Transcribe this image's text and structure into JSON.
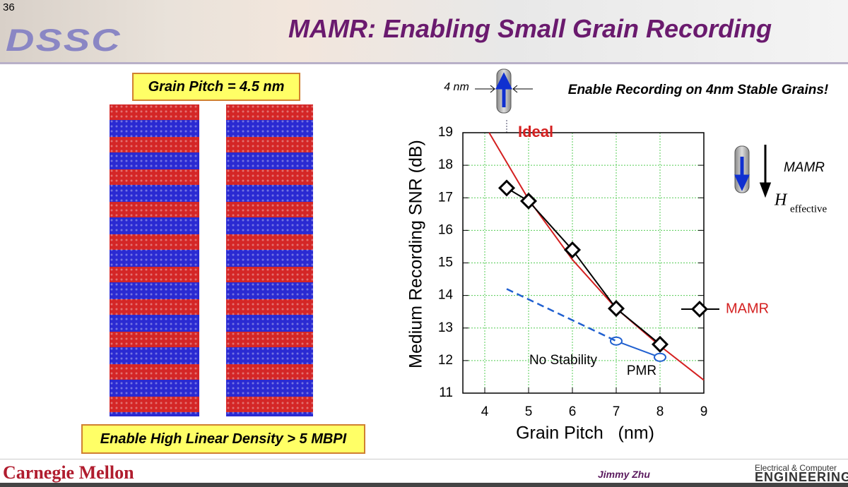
{
  "slide": {
    "number": "36",
    "logo": "DSSC",
    "title": "MAMR: Enabling Small Grain Recording",
    "box_top": "Grain Pitch = 4.5 nm",
    "box_bottom": "Enable High Linear Density > 5 MBPI",
    "footer_left": "Carnegie Mellon",
    "footer_author": "Jimmy Zhu",
    "footer_right_1": "Electrical & Computer",
    "footer_right_2": "ENGINEERING"
  },
  "chart_data": {
    "type": "line",
    "x_label": "Grain Pitch   (nm)",
    "y_label": "Medium Recording SNR (dB)",
    "xlim": [
      3.5,
      9
    ],
    "ylim": [
      11,
      19
    ],
    "xticks": [
      4,
      5,
      6,
      7,
      8,
      9
    ],
    "yticks": [
      11,
      12,
      13,
      14,
      15,
      16,
      17,
      18,
      19
    ],
    "grid": true,
    "series": [
      {
        "name": "Ideal",
        "color": "#d42020",
        "x": [
          4.1,
          5,
          6,
          7,
          8,
          9
        ],
        "values": [
          19,
          16.95,
          15.1,
          13.6,
          12.45,
          11.4
        ]
      },
      {
        "name": "MAMR",
        "color": "#000000",
        "marker": "diamond",
        "x": [
          4.5,
          5,
          6,
          7,
          8
        ],
        "values": [
          17.3,
          16.9,
          15.4,
          13.6,
          12.5
        ]
      },
      {
        "name": "PMR",
        "color": "#2060d0",
        "marker": "ellipse",
        "x": [
          7,
          8
        ],
        "values": [
          12.6,
          12.1
        ]
      },
      {
        "color": "#2060d0",
        "dashed": true,
        "x": [
          4.5,
          7
        ],
        "values": [
          14.2,
          12.6
        ]
      }
    ],
    "annotations": {
      "no_stability": "No Stability",
      "width_label": "4 nm",
      "headline": "Enable Recording on 4nm Stable Grains!",
      "icon_label": "MAMR",
      "field_symbol": "H",
      "field_subscript": "effective"
    }
  }
}
